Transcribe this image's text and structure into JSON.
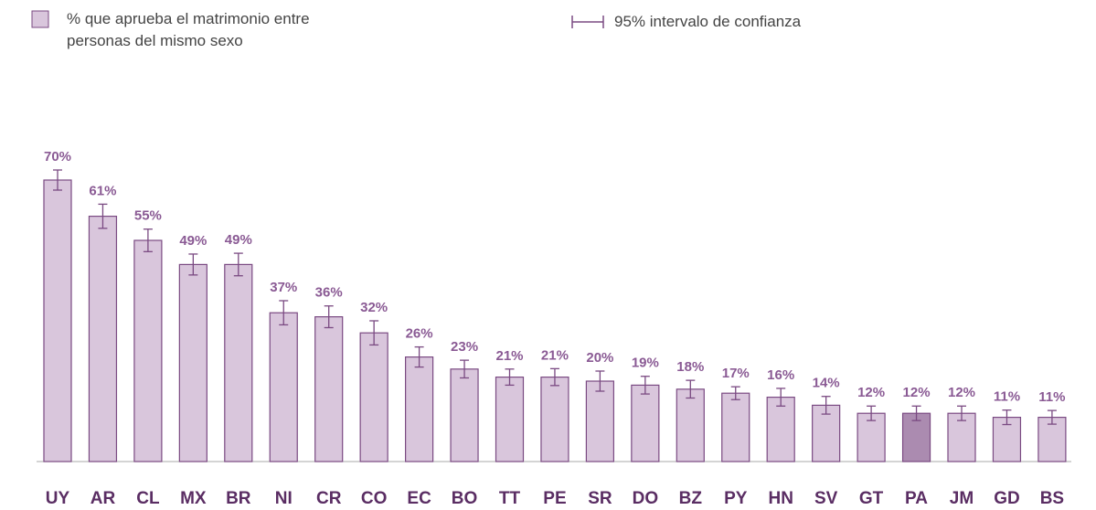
{
  "chart_data": {
    "type": "bar",
    "categories": [
      "UY",
      "AR",
      "CL",
      "MX",
      "BR",
      "NI",
      "CR",
      "CO",
      "EC",
      "BO",
      "TT",
      "PE",
      "SR",
      "DO",
      "BZ",
      "PY",
      "HN",
      "SV",
      "GT",
      "PA",
      "JM",
      "GD",
      "BS"
    ],
    "series": [
      {
        "name": "% que aprueba el matrimonio entre personas del mismo sexo",
        "color": "#d9c6dc",
        "colors": [
          "#d9c6dc",
          "#d9c6dc",
          "#d9c6dc",
          "#d9c6dc",
          "#d9c6dc",
          "#d9c6dc",
          "#d9c6dc",
          "#d9c6dc",
          "#d9c6dc",
          "#d9c6dc",
          "#d9c6dc",
          "#d9c6dc",
          "#d9c6dc",
          "#d9c6dc",
          "#d9c6dc",
          "#d9c6dc",
          "#d9c6dc",
          "#d9c6dc",
          "#d9c6dc",
          "#ab8bb0",
          "#d9c6dc",
          "#d9c6dc",
          "#d9c6dc"
        ],
        "values": [
          70,
          61,
          55,
          49,
          49,
          37,
          36,
          32,
          26,
          23,
          21,
          21,
          20,
          19,
          18,
          17,
          16,
          14,
          12,
          12,
          12,
          11,
          11
        ],
        "value_labels": [
          "70%",
          "61%",
          "55%",
          "49%",
          "49%",
          "37%",
          "36%",
          "32%",
          "26%",
          "23%",
          "21%",
          "21%",
          "20%",
          "19%",
          "18%",
          "17%",
          "16%",
          "14%",
          "12%",
          "12%",
          "12%",
          "11%",
          "11%"
        ],
        "errors": [
          2.5,
          3,
          2.8,
          2.6,
          2.8,
          3,
          2.7,
          3,
          2.5,
          2.2,
          2,
          2.1,
          2.5,
          2.2,
          2.2,
          1.6,
          2.2,
          2.2,
          1.8,
          1.8,
          1.8,
          1.8,
          1.7
        ]
      }
    ],
    "error_legend": "95% intervalo de confianza",
    "ylim": [
      0,
      75
    ]
  }
}
